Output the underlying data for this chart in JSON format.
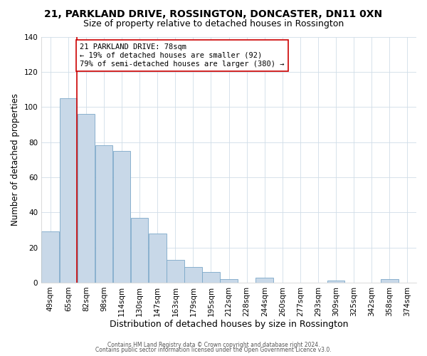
{
  "title": "21, PARKLAND DRIVE, ROSSINGTON, DONCASTER, DN11 0XN",
  "subtitle": "Size of property relative to detached houses in Rossington",
  "xlabel": "Distribution of detached houses by size in Rossington",
  "ylabel": "Number of detached properties",
  "bar_labels": [
    "49sqm",
    "65sqm",
    "82sqm",
    "98sqm",
    "114sqm",
    "130sqm",
    "147sqm",
    "163sqm",
    "179sqm",
    "195sqm",
    "212sqm",
    "228sqm",
    "244sqm",
    "260sqm",
    "277sqm",
    "293sqm",
    "309sqm",
    "325sqm",
    "342sqm",
    "358sqm",
    "374sqm"
  ],
  "bar_values": [
    29,
    105,
    96,
    78,
    75,
    37,
    28,
    13,
    9,
    6,
    2,
    0,
    3,
    0,
    0,
    0,
    1,
    0,
    0,
    2,
    0
  ],
  "bar_color": "#c8d8e8",
  "bar_edge_color": "#7ba8c8",
  "vline_color": "#cc0000",
  "annotation_line1": "21 PARKLAND DRIVE: 78sqm",
  "annotation_line2": "← 19% of detached houses are smaller (92)",
  "annotation_line3": "79% of semi-detached houses are larger (380) →",
  "annotation_box_color": "#ffffff",
  "annotation_box_edge": "#cc0000",
  "ylim": [
    0,
    140
  ],
  "yticks": [
    0,
    20,
    40,
    60,
    80,
    100,
    120,
    140
  ],
  "footer1": "Contains HM Land Registry data © Crown copyright and database right 2024.",
  "footer2": "Contains public sector information licensed under the Open Government Licence v3.0.",
  "background_color": "#ffffff",
  "title_fontsize": 10,
  "subtitle_fontsize": 9,
  "ylabel_fontsize": 8.5,
  "xlabel_fontsize": 9,
  "tick_fontsize": 7.5,
  "annot_fontsize": 7.5,
  "footer_fontsize": 5.5
}
